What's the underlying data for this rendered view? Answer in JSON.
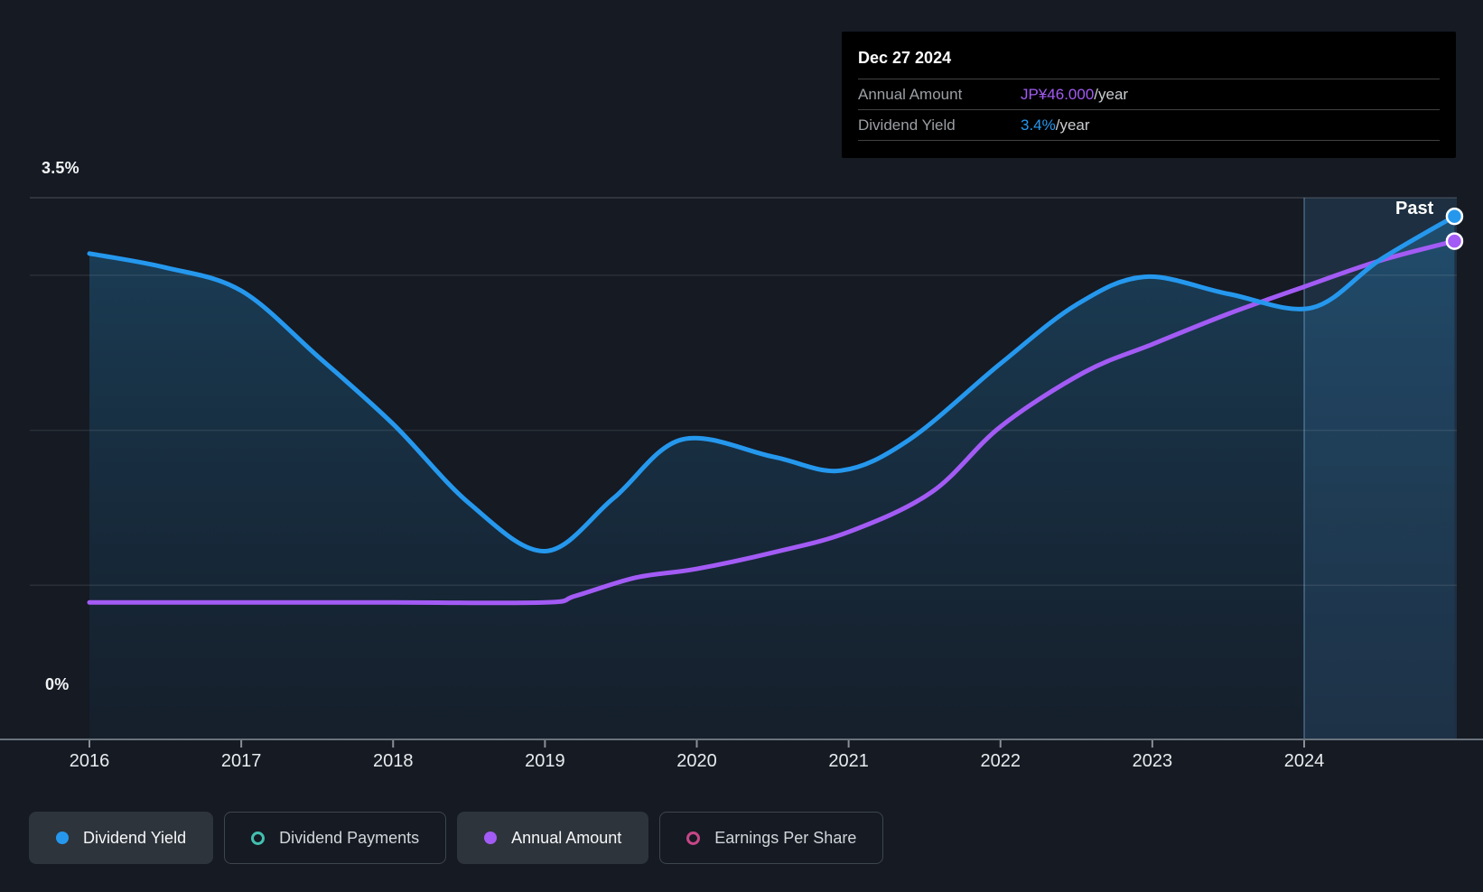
{
  "colors": {
    "background": "#151a23",
    "axis_line": "#6a727b",
    "gridline": "rgba(255,255,255,0.09)",
    "gridline_top": "rgba(255,255,255,0.16)",
    "tick": "#8a9096",
    "yield_line": "#2598ee",
    "amount_line": "#a35bf5",
    "payments_accent": "#43bfaf",
    "eps_accent": "#c74687",
    "area_top": "rgba(36,124,176,0.38)",
    "area_bottom": "rgba(24,78,118,0.10)",
    "past_band": "rgba(80,160,220,0.10)",
    "past_band_overlay": "rgba(80,160,220,0.07)",
    "past_boundary": "rgba(140,195,235,0.30)",
    "tooltip_bg": "#000000",
    "marker_stroke": "#ffffff"
  },
  "tooltip": {
    "date": "Dec 27 2024",
    "rows": [
      {
        "label": "Annual Amount",
        "value": "JP¥46.000",
        "suffix": "/year"
      },
      {
        "label": "Dividend Yield",
        "value": "3.4%",
        "suffix": "/year"
      }
    ]
  },
  "chart": {
    "past_label": "Past",
    "y_axis_top_label": "3.5%",
    "y_axis_bottom_label": "0%"
  },
  "legend": [
    {
      "label": "Dividend Yield",
      "marker": "filled",
      "color": "#2598ee",
      "active": true
    },
    {
      "label": "Dividend Payments",
      "marker": "ring",
      "color": "#43bfaf",
      "active": false
    },
    {
      "label": "Annual Amount",
      "marker": "filled",
      "color": "#a35bf5",
      "active": true
    },
    {
      "label": "Earnings Per Share",
      "marker": "ring",
      "color": "#c74687",
      "active": false
    }
  ],
  "chart_data": {
    "type": "line",
    "title": "Dividend history and yield",
    "x_axis": {
      "tick_years": [
        2016,
        2017,
        2018,
        2019,
        2020,
        2021,
        2022,
        2023,
        2024
      ],
      "min": 2016,
      "max": 2024.99
    },
    "y_axis_percent": {
      "min": 0,
      "max": 3.5,
      "gridlines": [
        3.5,
        3.0,
        2.0,
        1.0,
        0
      ],
      "labeled_ticks": [
        "3.5%",
        "0%"
      ]
    },
    "y_axis_amount": {
      "min": 0,
      "max": 50,
      "unit": "JP¥"
    },
    "past_region_start_year": 2024.0,
    "legend_position": "bottom",
    "series": [
      {
        "name": "Dividend Yield",
        "unit": "%",
        "axis": "y_axis_percent",
        "area": true,
        "end_marker": true,
        "end_value_label": "3.4%/year",
        "points": [
          [
            2016.0,
            3.14
          ],
          [
            2016.5,
            3.05
          ],
          [
            2017.0,
            2.9
          ],
          [
            2017.5,
            2.48
          ],
          [
            2018.0,
            2.04
          ],
          [
            2018.5,
            1.53
          ],
          [
            2019.0,
            1.22
          ],
          [
            2019.45,
            1.56
          ],
          [
            2019.9,
            1.94
          ],
          [
            2020.5,
            1.83
          ],
          [
            2020.95,
            1.74
          ],
          [
            2021.4,
            1.94
          ],
          [
            2022.0,
            2.43
          ],
          [
            2022.5,
            2.81
          ],
          [
            2022.95,
            2.99
          ],
          [
            2023.5,
            2.88
          ],
          [
            2024.05,
            2.79
          ],
          [
            2024.5,
            3.1
          ],
          [
            2024.99,
            3.38
          ]
        ]
      },
      {
        "name": "Annual Amount",
        "unit": "JP¥/year",
        "axis": "y_axis_amount",
        "area": false,
        "end_marker": true,
        "end_value_label": "JP¥46.000/year",
        "points": [
          [
            2016.0,
            12.7
          ],
          [
            2017.0,
            12.7
          ],
          [
            2018.0,
            12.7
          ],
          [
            2019.0,
            12.7
          ],
          [
            2019.2,
            13.3
          ],
          [
            2019.6,
            15.0
          ],
          [
            2020.0,
            15.8
          ],
          [
            2020.5,
            17.3
          ],
          [
            2021.0,
            19.2
          ],
          [
            2021.55,
            22.9
          ],
          [
            2022.0,
            28.9
          ],
          [
            2022.55,
            33.9
          ],
          [
            2023.0,
            36.5
          ],
          [
            2023.5,
            39.3
          ],
          [
            2024.0,
            41.8
          ],
          [
            2024.5,
            44.2
          ],
          [
            2024.99,
            46.0
          ]
        ]
      }
    ]
  }
}
